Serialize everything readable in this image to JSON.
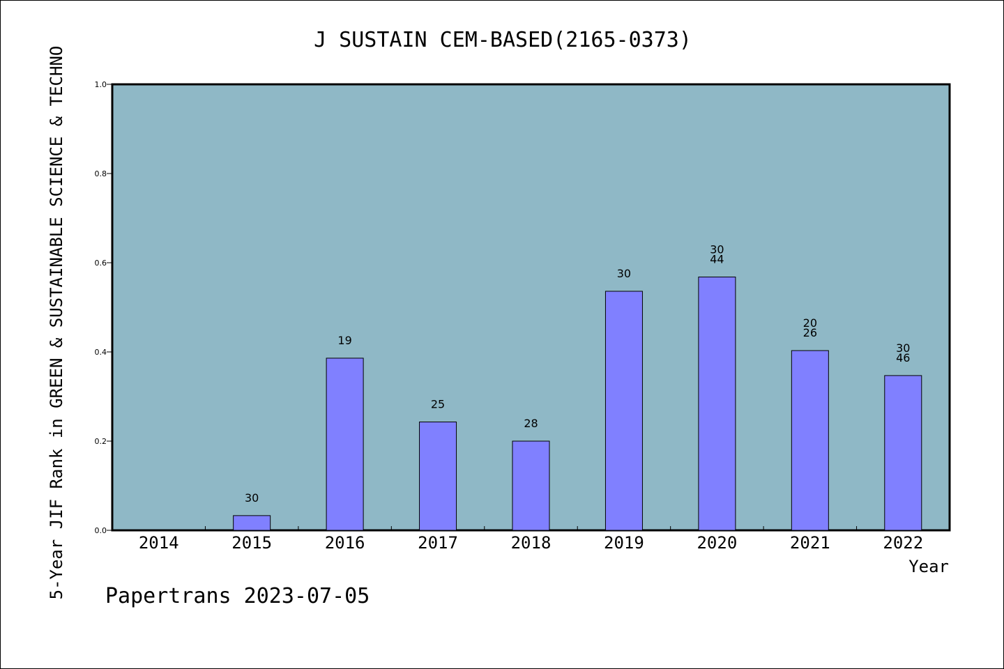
{
  "chart_data": {
    "type": "bar",
    "title": "J SUSTAIN CEM-BASED(2165-0373)",
    "xlabel": "Year",
    "ylabel": "5-Year JIF Rank in GREEN & SUSTAINABLE SCIENCE & TECHNO",
    "ylim": [
      0,
      1.0
    ],
    "yticks": [
      "0.0",
      "0.2",
      "0.4",
      "0.6",
      "0.8",
      "1.0"
    ],
    "categories": [
      "2014",
      "2015",
      "2016",
      "2017",
      "2018",
      "2019",
      "2020",
      "2021",
      "2022"
    ],
    "values": [
      0,
      0.033,
      0.386,
      0.243,
      0.2,
      0.536,
      0.568,
      0.403,
      0.347
    ],
    "labels": [
      [],
      [
        "30"
      ],
      [
        "19"
      ],
      [
        "25"
      ],
      [
        "28"
      ],
      [
        "30"
      ],
      [
        "30",
        "44"
      ],
      [
        "20",
        "26"
      ],
      [
        "30",
        "46"
      ]
    ],
    "grid": false,
    "colors": {
      "bar": "#8080ff",
      "plot_bg": "#8fb8c6"
    }
  },
  "footer": "Papertrans 2023-07-05"
}
